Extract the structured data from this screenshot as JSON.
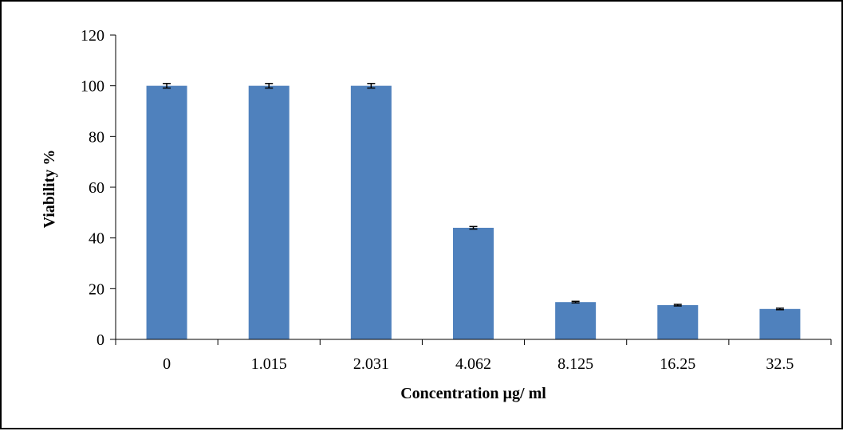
{
  "chart_data": {
    "type": "bar",
    "title": "",
    "xlabel": "Concentration µg/ ml",
    "ylabel": "Viability %",
    "categories": [
      "0",
      "1.015",
      "2.031",
      "4.062",
      "8.125",
      "16.25",
      "32.5"
    ],
    "values": [
      100,
      100,
      100,
      44,
      14.7,
      13.5,
      12
    ],
    "errors": [
      0.9,
      0.9,
      0.9,
      0.5,
      0.3,
      0.3,
      0.3
    ],
    "ylim": [
      0,
      120
    ],
    "yticks": [
      0,
      20,
      40,
      60,
      80,
      100,
      120
    ],
    "grid": false,
    "legend": "none",
    "bar_color": "#4F81BD",
    "error_bar_color": "#000000"
  }
}
